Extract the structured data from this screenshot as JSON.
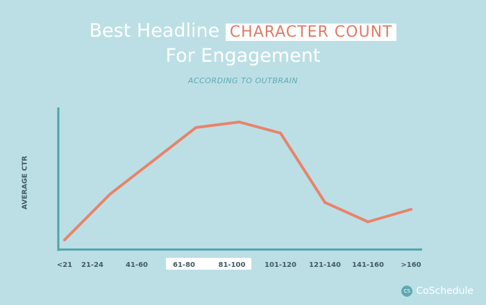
{
  "title": {
    "part1": "Best Headline",
    "highlight": "CHARACTER COUNT",
    "line2": "For Engagement"
  },
  "subtitle": "ACCORDING TO OUTBRAIN",
  "brand": "CoSchedule",
  "colors": {
    "background": "#bcdfe5",
    "axis": "#4fa3a9",
    "line": "#e8836b",
    "highlight": "#df7a66"
  },
  "chart_data": {
    "type": "line",
    "ylabel": "AVERAGE CTR",
    "xlabel": "",
    "categories": [
      "<21",
      "21-24",
      "41-60",
      "61-80",
      "81-100",
      "101-120",
      "121-140",
      "141-160",
      ">160"
    ],
    "highlighted_categories": [
      "61-80",
      "81-100"
    ],
    "y_ticks": "none",
    "ylim": [
      0,
      100
    ],
    "series": [
      {
        "x": [
          0,
          1.4,
          3.25,
          4.15,
          5,
          6,
          7,
          8
        ],
        "values": [
          7,
          40,
          88,
          92,
          84,
          34,
          20,
          29
        ]
      }
    ],
    "grid": false,
    "legend": "none"
  }
}
